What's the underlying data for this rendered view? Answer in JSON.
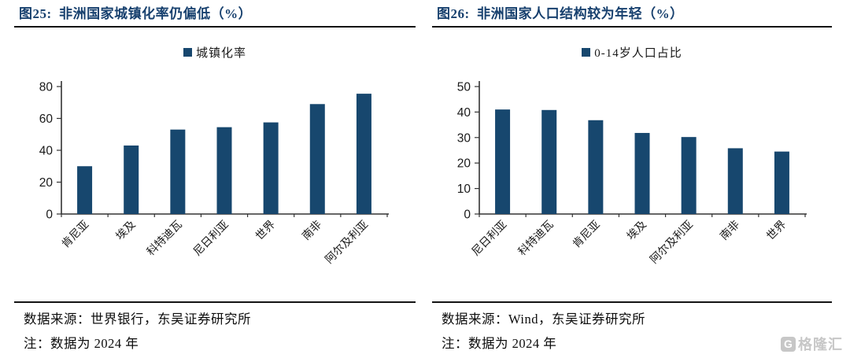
{
  "colors": {
    "bar": "#17476e",
    "title": "#17406e",
    "rule": "#141414",
    "axis": "#333333",
    "tick_text": "#1a1a1a",
    "watermark": "#c7c7c7"
  },
  "chart_data": [
    {
      "type": "bar",
      "title": "图25:  非洲国家城镇化率仍偏低（%）",
      "legend_label": "城镇化率",
      "categories": [
        "肯尼亚",
        "埃及",
        "科特迪瓦",
        "尼日利亚",
        "世界",
        "南非",
        "阿尔及利亚"
      ],
      "values": [
        30,
        43,
        53,
        54.5,
        57.5,
        69,
        75.5
      ],
      "xlabel": "",
      "ylabel": "",
      "ylim": [
        0,
        80
      ],
      "yticks": [
        0,
        20,
        40,
        60,
        80
      ],
      "grid": false,
      "legend_position": "top-center",
      "source": "数据来源：世界银行，东吴证券研究所",
      "note": "注：数据为 2024 年"
    },
    {
      "type": "bar",
      "title": "图26:  非洲国家人口结构较为年轻（%）",
      "legend_label": "0-14岁人口占比",
      "categories": [
        "尼日利亚",
        "科特迪瓦",
        "肯尼亚",
        "埃及",
        "阿尔及利亚",
        "南非",
        "世界"
      ],
      "values": [
        41,
        40.8,
        36.8,
        31.8,
        30.2,
        25.8,
        24.5
      ],
      "xlabel": "",
      "ylabel": "",
      "ylim": [
        0,
        50
      ],
      "yticks": [
        0,
        10,
        20,
        30,
        40,
        50
      ],
      "grid": false,
      "legend_position": "top-center",
      "source": "数据来源：Wind，东吴证券研究所",
      "note": "注：数据为 2024 年"
    }
  ],
  "watermark": {
    "badge": "G",
    "label": "格隆汇"
  }
}
